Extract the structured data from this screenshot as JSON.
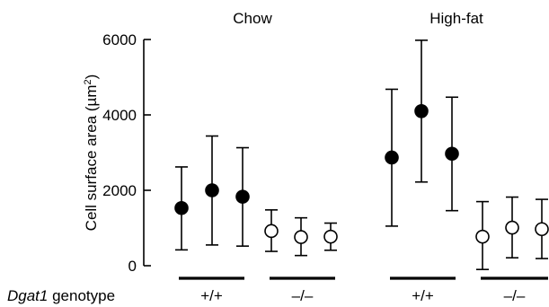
{
  "chart_data": {
    "type": "scatter",
    "ylabel_main": "Cell surface area (µm",
    "ylabel_sup": "2",
    "ylabel_end": ")",
    "ylim": [
      0,
      6000
    ],
    "yticks": [
      0,
      2000,
      4000,
      6000
    ],
    "ytick_labels": [
      "0",
      "2000",
      "4000",
      "6000"
    ],
    "xlabel_italic": "Dgat1",
    "xlabel_rest": " genotype",
    "grid": false,
    "panels": [
      {
        "title": "Chow",
        "groups": [
          {
            "label": "+/+",
            "marker": "filled",
            "points": [
              {
                "mean": 1530,
                "lower": 420,
                "upper": 2620
              },
              {
                "mean": 2000,
                "lower": 550,
                "upper": 3440
              },
              {
                "mean": 1830,
                "lower": 520,
                "upper": 3130
              }
            ]
          },
          {
            "label": "–/–",
            "marker": "open",
            "points": [
              {
                "mean": 920,
                "lower": 380,
                "upper": 1480
              },
              {
                "mean": 760,
                "lower": 270,
                "upper": 1270
              },
              {
                "mean": 770,
                "lower": 410,
                "upper": 1130
              }
            ]
          }
        ]
      },
      {
        "title": "High-fat",
        "groups": [
          {
            "label": "+/+",
            "marker": "filled",
            "points": [
              {
                "mean": 2870,
                "lower": 1050,
                "upper": 4680
              },
              {
                "mean": 4100,
                "lower": 2220,
                "upper": 5980
              },
              {
                "mean": 2970,
                "lower": 1460,
                "upper": 4470
              }
            ]
          },
          {
            "label": "–/–",
            "marker": "open",
            "points": [
              {
                "mean": 770,
                "lower": -100,
                "upper": 1700
              },
              {
                "mean": 1010,
                "lower": 210,
                "upper": 1820
              },
              {
                "mean": 970,
                "lower": 190,
                "upper": 1760
              }
            ]
          }
        ]
      }
    ]
  }
}
